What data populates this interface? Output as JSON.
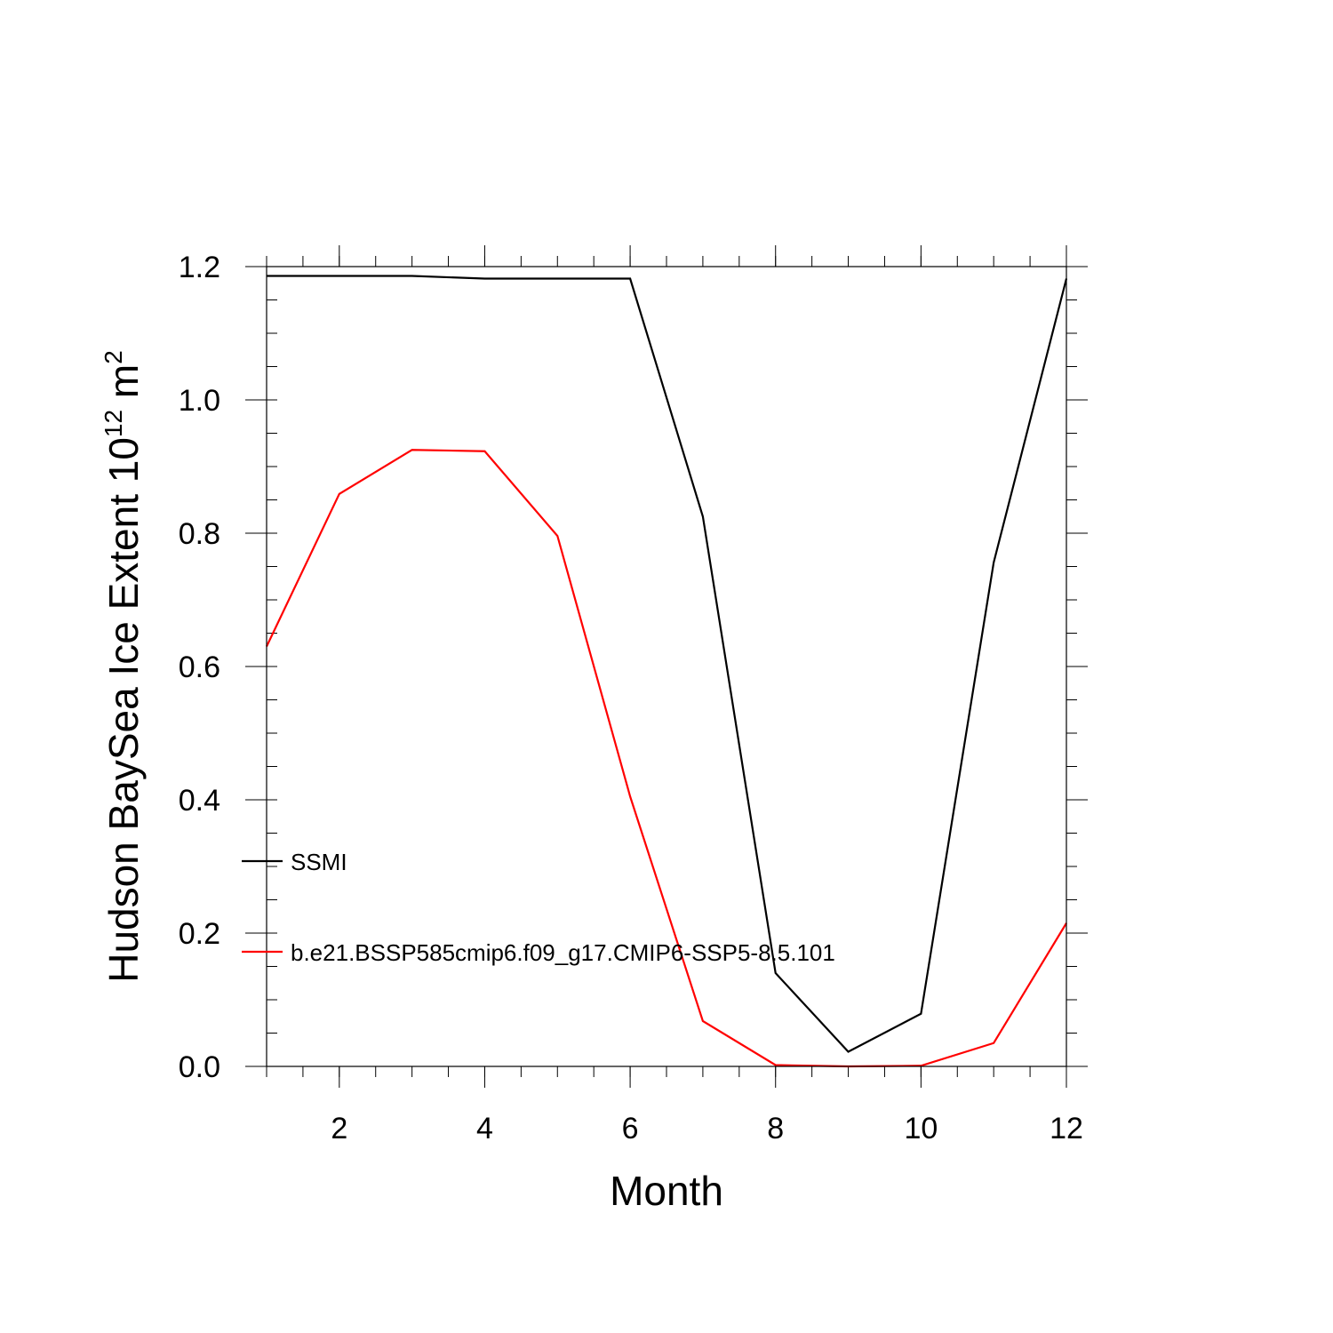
{
  "chart_data": {
    "type": "line",
    "title": "",
    "xlabel": "Month",
    "ylabel_main": "Hudson BaySea Ice Extent 10",
    "ylabel_sup": "12",
    "ylabel_unit": " m",
    "ylabel_unit_sup": "2",
    "xlim": [
      1,
      12
    ],
    "ylim": [
      0,
      1.2
    ],
    "xticks": [
      2,
      4,
      6,
      8,
      10,
      12
    ],
    "xtick_labels": [
      "2",
      "4",
      "6",
      "8",
      "10",
      "12"
    ],
    "yticks": [
      0,
      0.2,
      0.4,
      0.6,
      0.8,
      1.0,
      1.2
    ],
    "ytick_labels": [
      "0.0",
      "0.2",
      "0.4",
      "0.6",
      "0.8",
      "1.0",
      "1.2"
    ],
    "x": [
      1,
      2,
      3,
      4,
      5,
      6,
      7,
      8,
      9,
      10,
      11,
      12
    ],
    "grid": false,
    "legend_position": "left, inside plot",
    "series": [
      {
        "name": "SSMI",
        "color": "#000000",
        "values": [
          1.186,
          1.186,
          1.186,
          1.182,
          1.182,
          1.182,
          0.825,
          0.14,
          0.022,
          0.079,
          0.756,
          1.182
        ]
      },
      {
        "name": "b.e21.BSSP585cmip6.f09_g17.CMIP6-SSP5-8.5.101",
        "color": "#ff0000",
        "values": [
          0.63,
          0.859,
          0.925,
          0.923,
          0.796,
          0.405,
          0.068,
          0.002,
          0.0,
          0.001,
          0.035,
          0.215
        ]
      }
    ]
  }
}
